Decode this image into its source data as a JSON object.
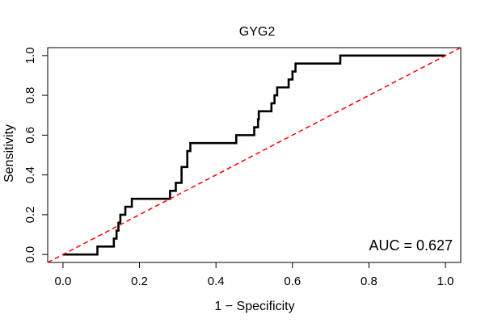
{
  "chart_data": {
    "type": "line",
    "title": "GYG2",
    "xlabel": "1 − Specificity",
    "ylabel": "Sensitivity",
    "xlim": [
      -0.04,
      1.04
    ],
    "ylim": [
      -0.04,
      1.04
    ],
    "x_ticks": [
      0.0,
      0.2,
      0.4,
      0.6,
      0.8,
      1.0
    ],
    "y_ticks": [
      0.0,
      0.2,
      0.4,
      0.6,
      0.8,
      1.0
    ],
    "x_tick_labels": [
      "0.0",
      "0.2",
      "0.4",
      "0.6",
      "0.8",
      "1.0"
    ],
    "y_tick_labels": [
      "0.0",
      "0.2",
      "0.4",
      "0.6",
      "0.8",
      "1.0"
    ],
    "grid": false,
    "annotation": "AUC = 0.627",
    "series": [
      {
        "style": "solid",
        "color": "#000000",
        "points": [
          [
            0.0,
            0.0
          ],
          [
            0.09,
            0.0
          ],
          [
            0.09,
            0.04
          ],
          [
            0.133,
            0.04
          ],
          [
            0.133,
            0.08
          ],
          [
            0.14,
            0.08
          ],
          [
            0.14,
            0.12
          ],
          [
            0.145,
            0.12
          ],
          [
            0.145,
            0.16
          ],
          [
            0.15,
            0.16
          ],
          [
            0.15,
            0.2
          ],
          [
            0.163,
            0.2
          ],
          [
            0.163,
            0.24
          ],
          [
            0.18,
            0.24
          ],
          [
            0.18,
            0.28
          ],
          [
            0.28,
            0.28
          ],
          [
            0.28,
            0.32
          ],
          [
            0.295,
            0.32
          ],
          [
            0.295,
            0.36
          ],
          [
            0.31,
            0.36
          ],
          [
            0.31,
            0.44
          ],
          [
            0.325,
            0.44
          ],
          [
            0.325,
            0.52
          ],
          [
            0.333,
            0.52
          ],
          [
            0.333,
            0.56
          ],
          [
            0.453,
            0.56
          ],
          [
            0.453,
            0.6
          ],
          [
            0.5,
            0.6
          ],
          [
            0.5,
            0.64
          ],
          [
            0.51,
            0.64
          ],
          [
            0.51,
            0.68
          ],
          [
            0.512,
            0.68
          ],
          [
            0.512,
            0.72
          ],
          [
            0.545,
            0.72
          ],
          [
            0.545,
            0.76
          ],
          [
            0.553,
            0.76
          ],
          [
            0.553,
            0.8
          ],
          [
            0.56,
            0.8
          ],
          [
            0.56,
            0.84
          ],
          [
            0.59,
            0.84
          ],
          [
            0.59,
            0.88
          ],
          [
            0.6,
            0.88
          ],
          [
            0.6,
            0.92
          ],
          [
            0.608,
            0.92
          ],
          [
            0.608,
            0.96
          ],
          [
            0.725,
            0.96
          ],
          [
            0.725,
            1.0
          ],
          [
            1.0,
            1.0
          ]
        ]
      },
      {
        "style": "dashed",
        "color": "#ff0000",
        "points": [
          [
            -0.04,
            -0.04
          ],
          [
            1.04,
            1.04
          ]
        ]
      }
    ]
  }
}
